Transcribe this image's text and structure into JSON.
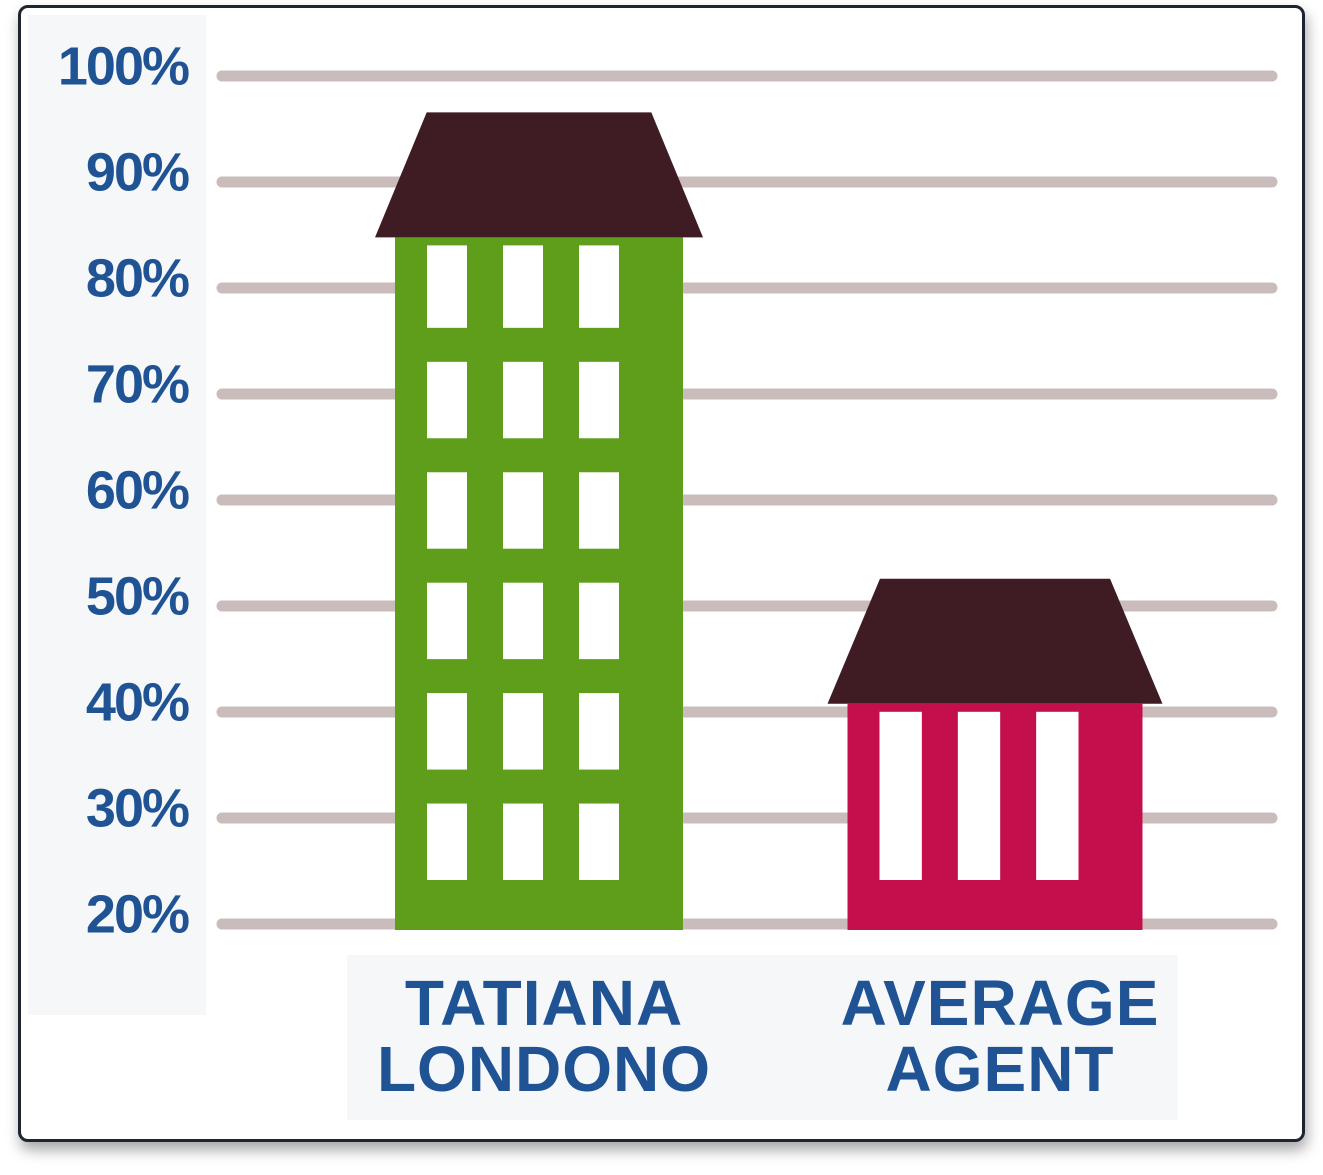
{
  "chart_data": {
    "type": "bar",
    "categories": [
      "TATIANA LONDONO",
      "AVERAGE AGENT"
    ],
    "values": [
      96,
      52
    ],
    "colors": [
      "#5e9e1a",
      "#c40f4d"
    ],
    "roof_color": "#3f1b24",
    "ylim": [
      20,
      100
    ],
    "yticks": [
      {
        "value": 20,
        "label": "20%"
      },
      {
        "value": 30,
        "label": "30%"
      },
      {
        "value": 40,
        "label": "40%"
      },
      {
        "value": 50,
        "label": "50%"
      },
      {
        "value": 60,
        "label": "60%"
      },
      {
        "value": 70,
        "label": "70%"
      },
      {
        "value": 80,
        "label": "80%"
      },
      {
        "value": 90,
        "label": "90%"
      },
      {
        "value": 100,
        "label": "100%"
      }
    ],
    "grid": true
  }
}
